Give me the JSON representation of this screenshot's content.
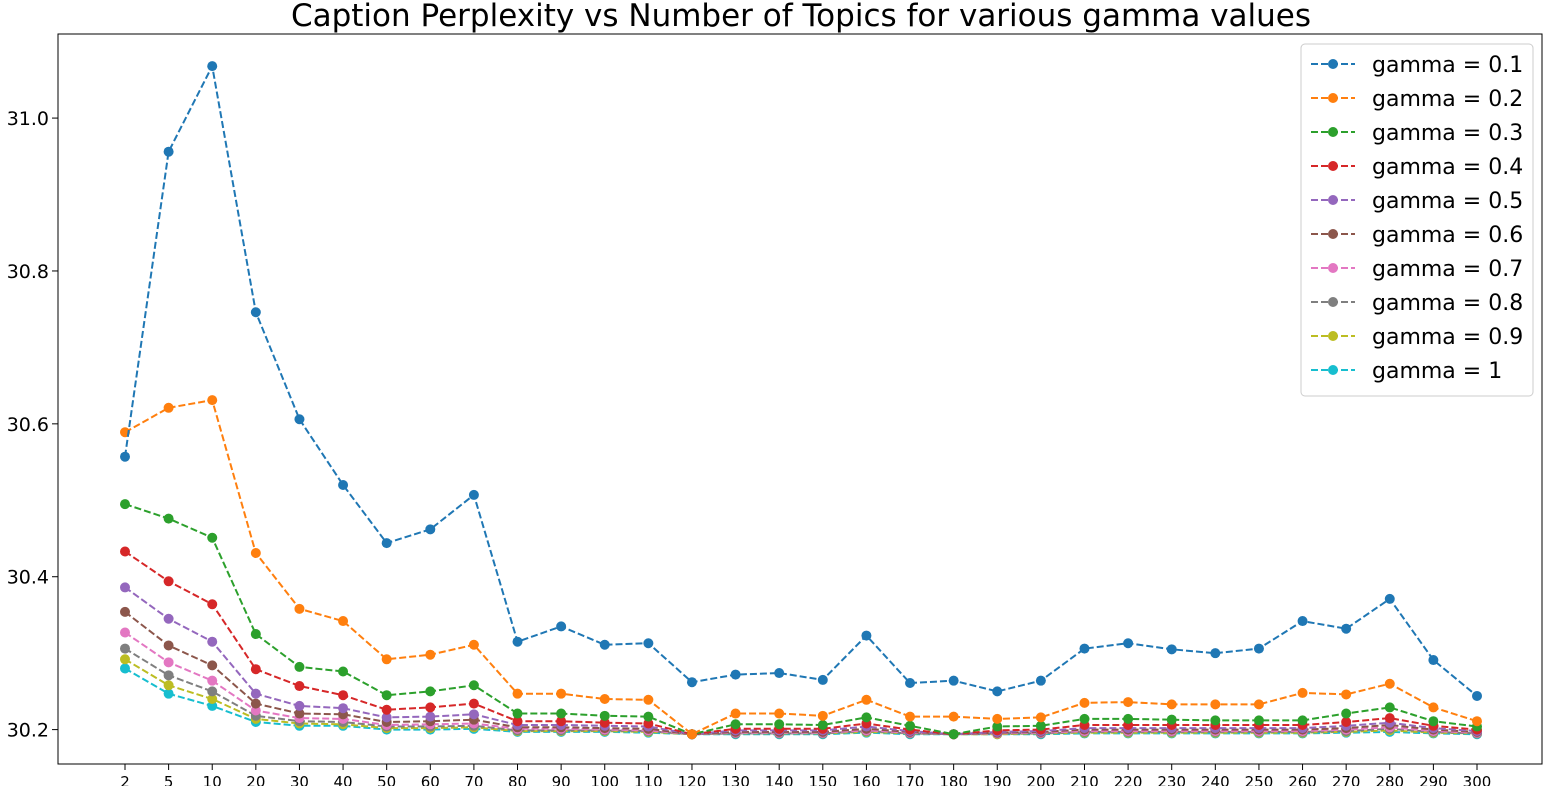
{
  "chart_data": {
    "type": "line",
    "title": "Caption Perplexity vs Number of Topics for various gamma values",
    "xlabel": "",
    "ylabel": "",
    "categories": [
      "2",
      "5",
      "10",
      "20",
      "30",
      "40",
      "50",
      "60",
      "70",
      "80",
      "90",
      "100",
      "110",
      "120",
      "130",
      "140",
      "150",
      "160",
      "170",
      "180",
      "190",
      "200",
      "210",
      "220",
      "230",
      "240",
      "250",
      "260",
      "270",
      "280",
      "290",
      "300"
    ],
    "y_ticks": [
      "30.2",
      "30.4",
      "30.6",
      "30.8",
      "31.0"
    ],
    "ylim": [
      30.155,
      31.11
    ],
    "grid": false,
    "legend_position": "top-right",
    "line_style": "dashed",
    "marker": "circle",
    "series": [
      {
        "name": "gamma = 0.1",
        "color": "#1f77b4",
        "values": [
          30.557,
          30.956,
          31.068,
          30.746,
          30.606,
          30.52,
          30.444,
          30.462,
          30.507,
          30.315,
          30.335,
          30.311,
          30.313,
          30.262,
          30.272,
          30.274,
          30.265,
          30.323,
          30.261,
          30.264,
          30.25,
          30.264,
          30.306,
          30.313,
          30.305,
          30.3,
          30.306,
          30.342,
          30.332,
          30.371,
          30.291,
          30.244
        ]
      },
      {
        "name": "gamma = 0.2",
        "color": "#ff7f0e",
        "values": [
          30.589,
          30.621,
          30.631,
          30.431,
          30.358,
          30.342,
          30.292,
          30.298,
          30.311,
          30.247,
          30.247,
          30.24,
          30.239,
          30.194,
          30.221,
          30.221,
          30.218,
          30.239,
          30.217,
          30.217,
          30.214,
          30.216,
          30.235,
          30.236,
          30.233,
          30.233,
          30.233,
          30.248,
          30.246,
          30.26,
          30.229,
          30.211
        ]
      },
      {
        "name": "gamma = 0.3",
        "color": "#2ca02c",
        "values": [
          30.495,
          30.476,
          30.451,
          30.325,
          30.282,
          30.276,
          30.245,
          30.25,
          30.258,
          30.221,
          30.221,
          30.218,
          30.217,
          30.194,
          30.207,
          30.207,
          30.206,
          30.216,
          30.205,
          30.194,
          30.204,
          30.205,
          30.214,
          30.214,
          30.213,
          30.212,
          30.212,
          30.212,
          30.221,
          30.229,
          30.211,
          30.204
        ]
      },
      {
        "name": "gamma = 0.4",
        "color": "#d62728",
        "values": [
          30.433,
          30.394,
          30.364,
          30.279,
          30.257,
          30.245,
          30.226,
          30.229,
          30.234,
          30.211,
          30.211,
          30.209,
          30.208,
          30.194,
          30.201,
          30.201,
          30.201,
          30.208,
          30.2,
          30.194,
          30.199,
          30.2,
          30.206,
          30.206,
          30.206,
          30.206,
          30.206,
          30.206,
          30.21,
          30.215,
          30.205,
          30.2
        ]
      },
      {
        "name": "gamma = 0.5",
        "color": "#9467bd",
        "values": [
          30.386,
          30.345,
          30.315,
          30.247,
          30.231,
          30.228,
          30.216,
          30.217,
          30.22,
          30.206,
          30.206,
          30.205,
          30.204,
          30.194,
          30.199,
          30.199,
          30.199,
          30.204,
          30.198,
          30.194,
          30.197,
          30.198,
          30.202,
          30.202,
          30.202,
          30.202,
          30.202,
          30.202,
          30.205,
          30.209,
          30.202,
          30.198
        ]
      },
      {
        "name": "gamma = 0.6",
        "color": "#8c564b",
        "values": [
          30.354,
          30.31,
          30.284,
          30.234,
          30.221,
          30.22,
          30.21,
          30.211,
          30.213,
          30.203,
          30.203,
          30.202,
          30.201,
          30.194,
          30.197,
          30.197,
          30.197,
          30.201,
          30.197,
          30.194,
          30.196,
          30.197,
          30.2,
          30.2,
          30.2,
          30.2,
          30.2,
          30.2,
          30.202,
          30.206,
          30.2,
          30.197
        ]
      },
      {
        "name": "gamma = 0.7",
        "color": "#e377c2",
        "values": [
          30.327,
          30.288,
          30.264,
          30.225,
          30.215,
          30.214,
          30.206,
          30.207,
          30.208,
          30.201,
          30.201,
          30.2,
          30.199,
          30.194,
          30.196,
          30.196,
          30.196,
          30.199,
          30.196,
          30.194,
          30.195,
          30.196,
          30.198,
          30.198,
          30.198,
          30.198,
          30.198,
          30.198,
          30.2,
          30.203,
          30.198,
          30.196
        ]
      },
      {
        "name": "gamma = 0.8",
        "color": "#7f7f7f",
        "values": [
          30.306,
          30.271,
          30.25,
          30.218,
          30.211,
          30.21,
          30.204,
          30.204,
          30.205,
          30.199,
          30.199,
          30.199,
          30.198,
          30.194,
          30.195,
          30.195,
          30.195,
          30.198,
          30.195,
          30.194,
          30.195,
          30.195,
          30.197,
          30.197,
          30.197,
          30.197,
          30.197,
          30.197,
          30.198,
          30.201,
          30.197,
          30.195
        ]
      },
      {
        "name": "gamma = 0.9",
        "color": "#bcbd22",
        "values": [
          30.292,
          30.258,
          30.24,
          30.214,
          30.208,
          30.207,
          30.202,
          30.202,
          30.203,
          30.198,
          30.198,
          30.198,
          30.197,
          30.194,
          30.195,
          30.195,
          30.195,
          30.197,
          30.195,
          30.194,
          30.194,
          30.195,
          30.196,
          30.196,
          30.196,
          30.196,
          30.196,
          30.196,
          30.197,
          30.199,
          30.196,
          30.195
        ]
      },
      {
        "name": "gamma = 1",
        "color": "#17becf",
        "values": [
          30.28,
          30.247,
          30.231,
          30.21,
          30.205,
          30.205,
          30.2,
          30.2,
          30.201,
          30.197,
          30.197,
          30.197,
          30.196,
          30.194,
          30.194,
          30.194,
          30.194,
          30.196,
          30.194,
          30.194,
          30.194,
          30.194,
          30.195,
          30.195,
          30.195,
          30.195,
          30.195,
          30.195,
          30.196,
          30.197,
          30.195,
          30.194
        ]
      }
    ]
  }
}
